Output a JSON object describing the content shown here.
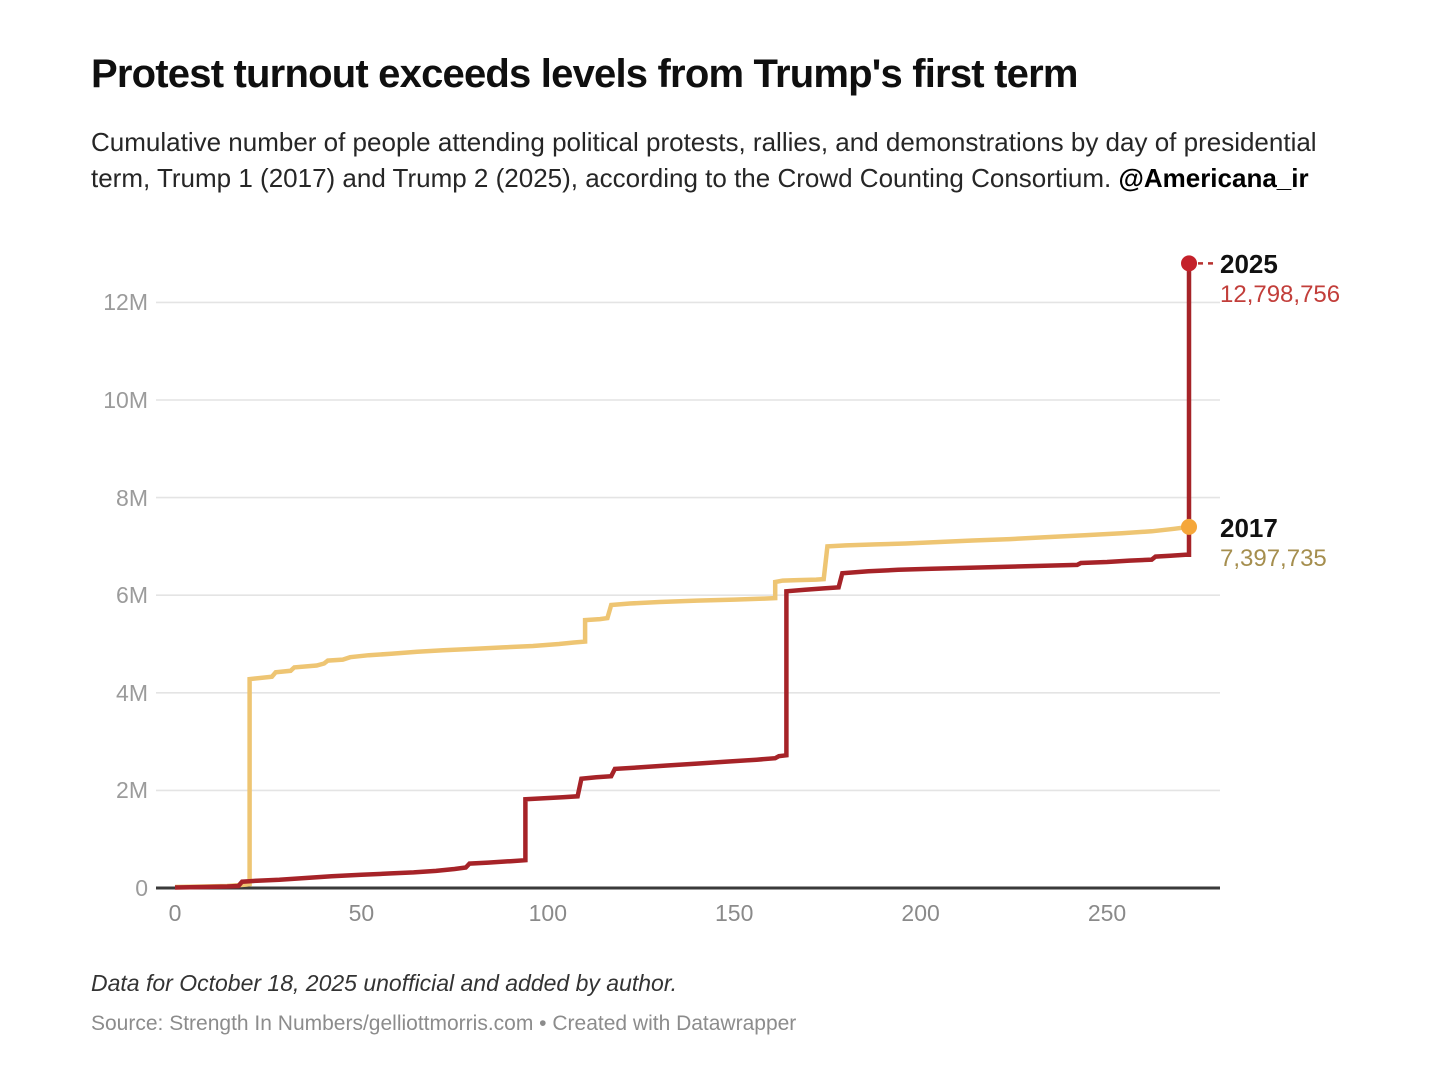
{
  "header": {
    "title": "Protest turnout exceeds levels from Trump's first term",
    "subtitle": "Cumulative number of people attending political protests, rallies, and demonstrations by day of presidential term, Trump 1 (2017) and Trump 2 (2025), according to the Crowd Counting Consortium. ",
    "handle": "@Americana_ir"
  },
  "annotations": {
    "trump2025": {
      "label": "2025",
      "value": "12,798,756",
      "value_color": "#c23e3a"
    },
    "trump2017": {
      "label": "2017",
      "value": "7,397,735",
      "value_color": "#a58e4e"
    }
  },
  "footer": {
    "note": "Data for October 18, 2025 unofficial and added by author.",
    "source": "Source: Strength In Numbers/gelliottmorris.com • Created with Datawrapper"
  },
  "chart_data": {
    "type": "line",
    "step": true,
    "title": "Protest turnout exceeds levels from Trump's first term",
    "xlabel": "",
    "ylabel": "",
    "unit": "millions of people (M)",
    "xlim": [
      0,
      281
    ],
    "ylim": [
      0,
      13.1
    ],
    "grid": "horizontal",
    "legend_position": "end-of-line labels (right)",
    "axis_color": "#3a3a3a",
    "grid_color": "#e4e4e4",
    "x_ticks": [
      {
        "value": 0,
        "label": "0"
      },
      {
        "value": 50,
        "label": "50"
      },
      {
        "value": 100,
        "label": "100"
      },
      {
        "value": 150,
        "label": "150"
      },
      {
        "value": 200,
        "label": "200"
      },
      {
        "value": 250,
        "label": "250"
      }
    ],
    "y_ticks": [
      {
        "value": 0,
        "label": "0"
      },
      {
        "value": 2,
        "label": "2M"
      },
      {
        "value": 4,
        "label": "4M"
      },
      {
        "value": 6,
        "label": "6M"
      },
      {
        "value": 8,
        "label": "8M"
      },
      {
        "value": 10,
        "label": "10M"
      },
      {
        "value": 12,
        "label": "12M"
      }
    ],
    "series": [
      {
        "name": "2017",
        "color": "#eec573",
        "dot_color": "#f5a73b",
        "final_value": 7397735,
        "final_day": 272,
        "points": [
          [
            0,
            0.02
          ],
          [
            14,
            0.04
          ],
          [
            19,
            0.07
          ],
          [
            20,
            0.08
          ],
          [
            20,
            4.28
          ],
          [
            26,
            4.33
          ],
          [
            27,
            4.42
          ],
          [
            31,
            4.45
          ],
          [
            32,
            4.52
          ],
          [
            38,
            4.56
          ],
          [
            40,
            4.6
          ],
          [
            41,
            4.66
          ],
          [
            45,
            4.68
          ],
          [
            47,
            4.73
          ],
          [
            52,
            4.77
          ],
          [
            58,
            4.8
          ],
          [
            65,
            4.84
          ],
          [
            72,
            4.87
          ],
          [
            80,
            4.9
          ],
          [
            88,
            4.93
          ],
          [
            96,
            4.96
          ],
          [
            103,
            5.0
          ],
          [
            107,
            5.03
          ],
          [
            110,
            5.05
          ],
          [
            110,
            5.49
          ],
          [
            114,
            5.51
          ],
          [
            116,
            5.53
          ],
          [
            117,
            5.8
          ],
          [
            122,
            5.83
          ],
          [
            130,
            5.86
          ],
          [
            140,
            5.89
          ],
          [
            150,
            5.91
          ],
          [
            158,
            5.93
          ],
          [
            161,
            5.94
          ],
          [
            161,
            6.27
          ],
          [
            163,
            6.3
          ],
          [
            167,
            6.31
          ],
          [
            172,
            6.32
          ],
          [
            174,
            6.33
          ],
          [
            175,
            7.0
          ],
          [
            180,
            7.02
          ],
          [
            188,
            7.04
          ],
          [
            196,
            7.06
          ],
          [
            205,
            7.09
          ],
          [
            214,
            7.12
          ],
          [
            224,
            7.15
          ],
          [
            234,
            7.19
          ],
          [
            244,
            7.23
          ],
          [
            254,
            7.27
          ],
          [
            262,
            7.31
          ],
          [
            268,
            7.36
          ],
          [
            272,
            7.4
          ]
        ]
      },
      {
        "name": "2025",
        "color": "#a62328",
        "dot_color": "#c4212a",
        "final_value": 12798756,
        "final_day": 272,
        "points": [
          [
            0,
            0.01
          ],
          [
            8,
            0.02
          ],
          [
            14,
            0.03
          ],
          [
            17,
            0.04
          ],
          [
            18,
            0.13
          ],
          [
            22,
            0.15
          ],
          [
            28,
            0.17
          ],
          [
            34,
            0.2
          ],
          [
            42,
            0.24
          ],
          [
            50,
            0.27
          ],
          [
            58,
            0.3
          ],
          [
            64,
            0.32
          ],
          [
            70,
            0.35
          ],
          [
            75,
            0.39
          ],
          [
            78,
            0.42
          ],
          [
            79,
            0.5
          ],
          [
            84,
            0.52
          ],
          [
            90,
            0.55
          ],
          [
            94,
            0.57
          ],
          [
            94,
            1.82
          ],
          [
            99,
            1.84
          ],
          [
            104,
            1.86
          ],
          [
            108,
            1.88
          ],
          [
            109,
            2.24
          ],
          [
            113,
            2.27
          ],
          [
            117,
            2.29
          ],
          [
            118,
            2.44
          ],
          [
            124,
            2.47
          ],
          [
            132,
            2.51
          ],
          [
            140,
            2.55
          ],
          [
            148,
            2.59
          ],
          [
            156,
            2.63
          ],
          [
            161,
            2.66
          ],
          [
            162,
            2.7
          ],
          [
            164,
            2.72
          ],
          [
            164,
            6.08
          ],
          [
            169,
            6.11
          ],
          [
            174,
            6.14
          ],
          [
            178,
            6.16
          ],
          [
            179,
            6.45
          ],
          [
            186,
            6.49
          ],
          [
            194,
            6.52
          ],
          [
            203,
            6.54
          ],
          [
            212,
            6.56
          ],
          [
            222,
            6.58
          ],
          [
            232,
            6.6
          ],
          [
            242,
            6.62
          ],
          [
            243,
            6.66
          ],
          [
            250,
            6.68
          ],
          [
            256,
            6.71
          ],
          [
            262,
            6.73
          ],
          [
            263,
            6.79
          ],
          [
            267,
            6.81
          ],
          [
            271,
            6.83
          ],
          [
            272,
            6.83
          ],
          [
            272,
            12.8
          ]
        ]
      }
    ]
  }
}
